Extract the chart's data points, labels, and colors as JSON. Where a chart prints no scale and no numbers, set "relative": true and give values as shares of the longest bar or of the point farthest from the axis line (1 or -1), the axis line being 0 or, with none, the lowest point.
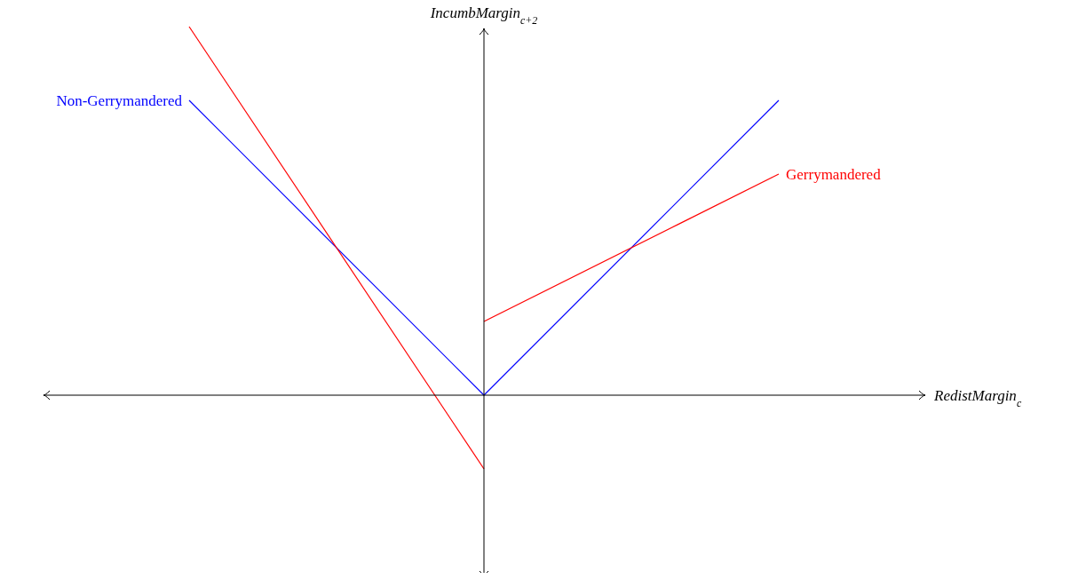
{
  "chart_data": {
    "type": "line",
    "relative": true,
    "xlabel": "RedistMargin$_{c}$",
    "ylabel": "IncumbMargin$_{c+2}$",
    "legend": false,
    "categories": [
      null,
      null,
      null
    ],
    "series": [
      {
        "name": "Non-Gerrymandered",
        "color": "#0000ff",
        "values": [
          0.8,
          0,
          0.8
        ]
      },
      {
        "color": "#ff0000",
        "values": [
          1,
          -0.2,
          null
        ]
      },
      {
        "name": "Gerrymandered",
        "color": "#ff0000",
        "values": [
          null,
          0.2,
          0.6
        ]
      }
    ]
  }
}
